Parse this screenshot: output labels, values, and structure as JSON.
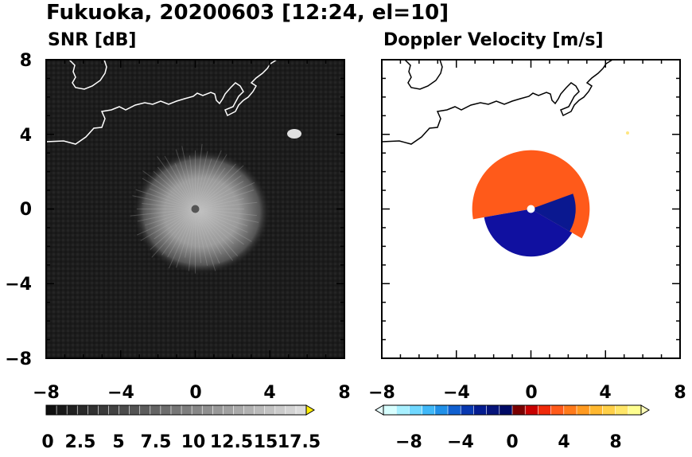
{
  "figure": {
    "title": "Fukuoka, 20200603 [12:24, el=10]"
  },
  "chart_data": [
    {
      "type": "heatmap",
      "title": "SNR [dB]",
      "xlim": [
        -8,
        8
      ],
      "ylim": [
        -8,
        8
      ],
      "xticks": [
        "−8",
        "−4",
        "0",
        "4",
        "8"
      ],
      "yticks": [
        "8",
        "4",
        "0",
        "−4",
        "−8"
      ],
      "background_color": "#1c1c1c",
      "echo_center": [
        0,
        0
      ],
      "echo_radius": 3.5,
      "echo_peak_snr": 12,
      "hot_spot": {
        "x": 5.2,
        "y": 4.0,
        "color": "#ffee00"
      },
      "colorbar": {
        "tick_labels": [
          "0",
          "2.5",
          "5",
          "7.5",
          "10",
          "12.5",
          "15",
          "17.5"
        ],
        "min": 0,
        "max": 20,
        "extend": "max",
        "extend_color": "#ffee00"
      }
    },
    {
      "type": "heatmap",
      "title": "Doppler Velocity [m/s]",
      "xlim": [
        -8,
        8
      ],
      "ylim": [
        -8,
        8
      ],
      "xticks": [
        "−8",
        "−4",
        "0",
        "4",
        "8"
      ],
      "yticks": [
        "8",
        "4",
        "0",
        "−4",
        "−8"
      ],
      "background_color": "#ffffff",
      "echo_center": [
        0,
        0
      ],
      "echo_radius": 3.0,
      "toward_radar_color": "#1010a0",
      "away_radar_color": "#ff5a1a",
      "colorbar": {
        "tick_labels": [
          "−8",
          "−4",
          "0",
          "4",
          "8"
        ],
        "min": -10,
        "max": 10,
        "extend": "both",
        "colors": [
          "#d8ffff",
          "#a8f0ff",
          "#70d8ff",
          "#40b8f8",
          "#2090e8",
          "#1060d0",
          "#0838b0",
          "#041c90",
          "#06147a",
          "#000a66",
          "#7a0000",
          "#c80000",
          "#f02a0a",
          "#ff5a1a",
          "#ff7a1a",
          "#ff9a20",
          "#ffb830",
          "#ffd048",
          "#ffe668",
          "#ffff90"
        ]
      }
    }
  ]
}
